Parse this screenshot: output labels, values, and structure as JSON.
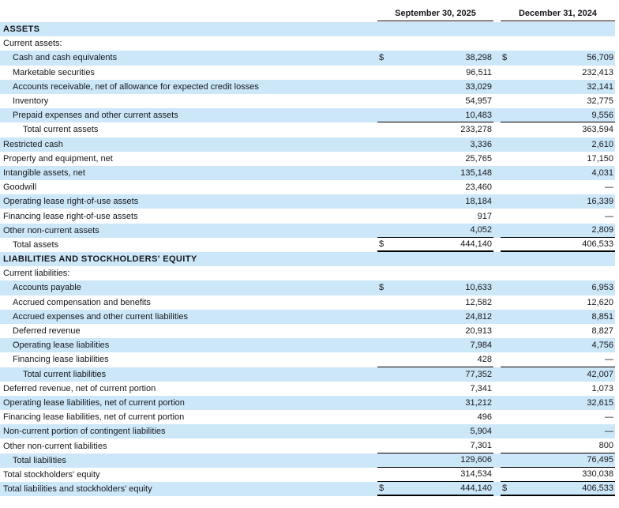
{
  "colors": {
    "row_shade": "#cce7f8",
    "rule": "#000000",
    "text": "#17171c"
  },
  "table": {
    "columns": [
      "September 30, 2025",
      "December 31, 2024"
    ],
    "rows": [
      {
        "label": "ASSETS",
        "indent": 0,
        "bold": true
      },
      {
        "label": "Current assets:",
        "indent": 0
      },
      {
        "label": "Cash and cash equivalents",
        "indent": 1,
        "d1": "$",
        "v1": "38,298",
        "d2": "$",
        "v2": "56,709"
      },
      {
        "label": "Marketable securities",
        "indent": 1,
        "v1": "96,511",
        "v2": "232,413"
      },
      {
        "label": "Accounts receivable, net of allowance for expected credit losses",
        "indent": 1,
        "v1": "33,029",
        "v2": "32,141"
      },
      {
        "label": "Inventory",
        "indent": 1,
        "v1": "54,957",
        "v2": "32,775"
      },
      {
        "label": "Prepaid expenses and other current assets",
        "indent": 1,
        "v1": "10,483",
        "v2": "9,556",
        "rule": "thin"
      },
      {
        "label": "Total current assets",
        "indent": 2,
        "v1": "233,278",
        "v2": "363,594"
      },
      {
        "label": "Restricted cash",
        "indent": 0,
        "v1": "3,336",
        "v2": "2,610"
      },
      {
        "label": "Property and equipment, net",
        "indent": 0,
        "v1": "25,765",
        "v2": "17,150"
      },
      {
        "label": "Intangible assets, net",
        "indent": 0,
        "v1": "135,148",
        "v2": "4,031"
      },
      {
        "label": "Goodwill",
        "indent": 0,
        "v1": "23,460",
        "v2": "—"
      },
      {
        "label": "Operating lease right-of-use assets",
        "indent": 0,
        "v1": "18,184",
        "v2": "16,339"
      },
      {
        "label": "Financing lease right-of-use assets",
        "indent": 0,
        "v1": "917",
        "v2": "—"
      },
      {
        "label": "Other non-current assets",
        "indent": 0,
        "v1": "4,052",
        "v2": "2,809",
        "rule": "thin"
      },
      {
        "label": "Total assets",
        "indent": 1,
        "d1": "$",
        "v1": "444,140",
        "v2": "406,533",
        "rule": "thick"
      },
      {
        "label": "LIABILITIES AND STOCKHOLDERS' EQUITY",
        "indent": 0,
        "bold": true
      },
      {
        "label": "Current liabilities:",
        "indent": 0
      },
      {
        "label": "Accounts payable",
        "indent": 1,
        "d1": "$",
        "v1": "10,633",
        "v2": "6,953"
      },
      {
        "label": "Accrued compensation and benefits",
        "indent": 1,
        "v1": "12,582",
        "v2": "12,620"
      },
      {
        "label": "Accrued expenses and other current liabilities",
        "indent": 1,
        "v1": "24,812",
        "v2": "8,851"
      },
      {
        "label": "Deferred revenue",
        "indent": 1,
        "v1": "20,913",
        "v2": "8,827"
      },
      {
        "label": "Operating lease liabilities",
        "indent": 1,
        "v1": "7,984",
        "v2": "4,756"
      },
      {
        "label": "Financing lease liabilities",
        "indent": 1,
        "v1": "428",
        "v2": "—",
        "rule": "thin"
      },
      {
        "label": "Total current liabilities",
        "indent": 2,
        "v1": "77,352",
        "v2": "42,007"
      },
      {
        "label": "Deferred revenue, net of current portion",
        "indent": 0,
        "v1": "7,341",
        "v2": "1,073"
      },
      {
        "label": "Operating lease liabilities, net of current portion",
        "indent": 0,
        "v1": "31,212",
        "v2": "32,615"
      },
      {
        "label": "Financing lease liabilities, net of current portion",
        "indent": 0,
        "v1": "496",
        "v2": "—"
      },
      {
        "label": "Non-current portion of contingent liabilities",
        "indent": 0,
        "v1": "5,904",
        "v2": "—"
      },
      {
        "label": "Other non-current liabilities",
        "indent": 0,
        "v1": "7,301",
        "v2": "800",
        "rule": "thin"
      },
      {
        "label": "Total liabilities",
        "indent": 1,
        "v1": "129,606",
        "v2": "76,495",
        "rule": "thin"
      },
      {
        "label": "Total stockholders' equity",
        "indent": 0,
        "v1": "314,534",
        "v2": "330,038",
        "rule": "thin"
      },
      {
        "label": "Total liabilities and stockholders' equity",
        "indent": 0,
        "d1": "$",
        "v1": "444,140",
        "d2": "$",
        "v2": "406,533",
        "rule": "thick"
      }
    ]
  }
}
